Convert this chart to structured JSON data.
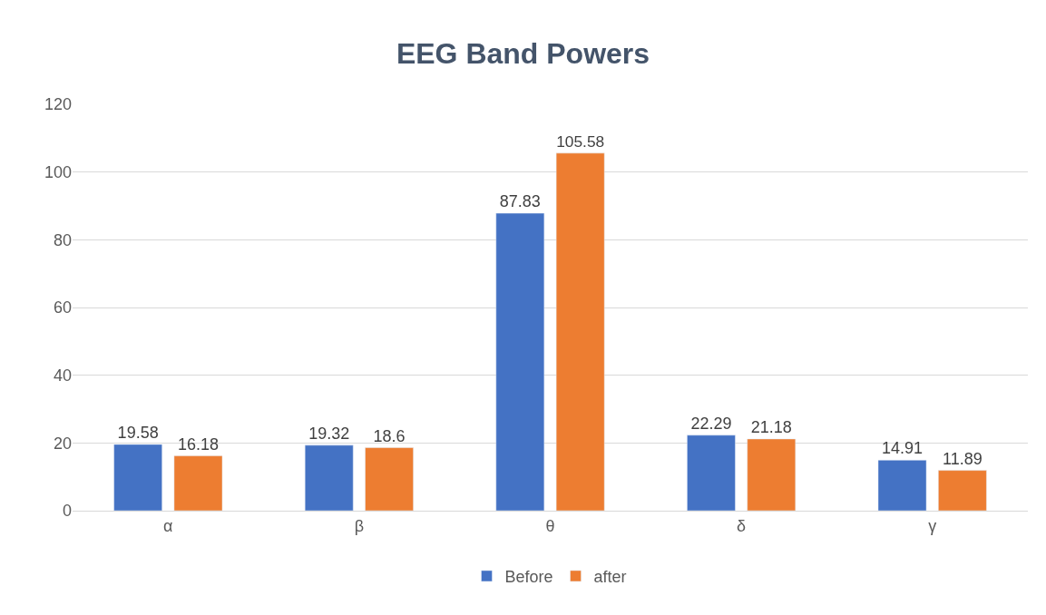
{
  "chart_data": {
    "type": "bar",
    "title": "EEG Band Powers",
    "categories": [
      "α",
      "β",
      "θ",
      "δ",
      "γ"
    ],
    "series": [
      {
        "name": "Before",
        "color": "#4472c4",
        "values": [
          19.58,
          19.32,
          87.83,
          22.29,
          14.91
        ]
      },
      {
        "name": "after",
        "color": "#ed7d31",
        "values": [
          16.18,
          18.6,
          105.58,
          21.18,
          11.89
        ]
      }
    ],
    "ylim": [
      0,
      120
    ],
    "yticks": [
      0,
      20,
      40,
      60,
      80,
      100,
      120
    ],
    "grid": "y",
    "legend": "bottom",
    "data_labels": true
  }
}
